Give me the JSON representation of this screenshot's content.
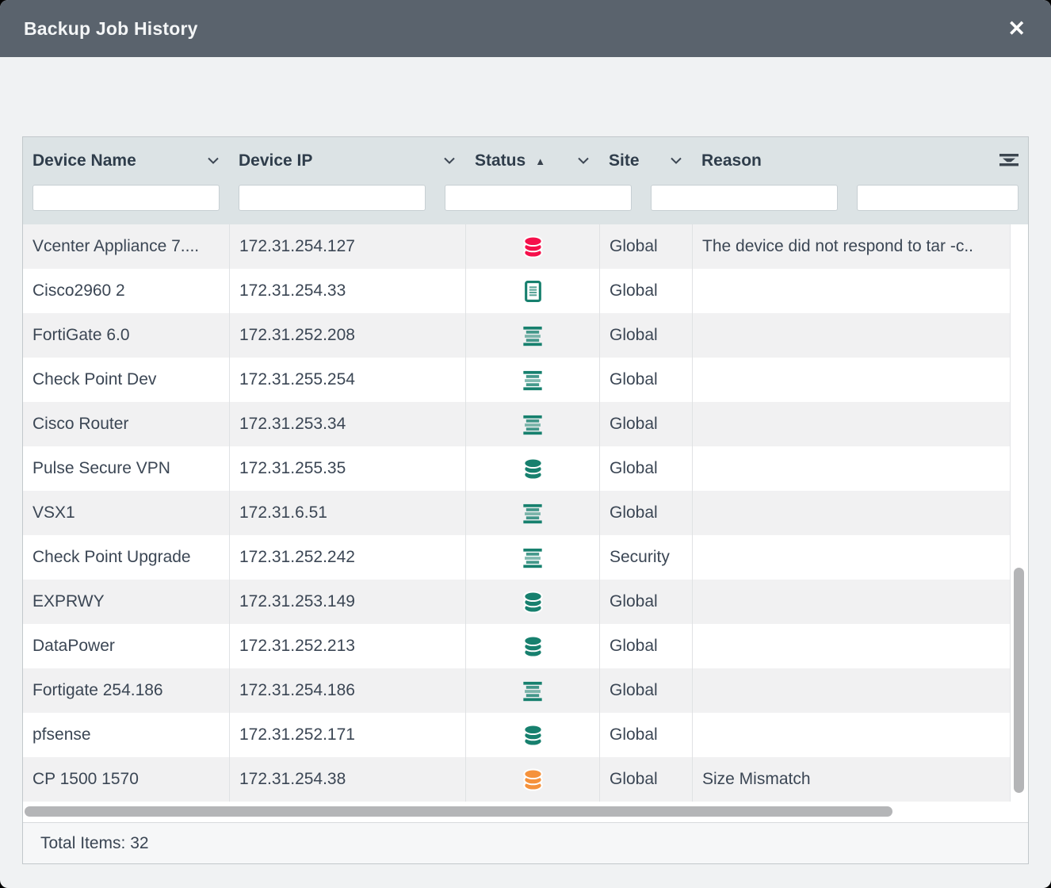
{
  "titlebar": {
    "title": "Backup Job History",
    "close_glyph": "✕"
  },
  "colors": {
    "titlebar_bg": "#5a636d",
    "table_header_bg": "#dce3e5",
    "row_alt_bg": "#f1f1f2",
    "status_failed_red": "#f5104b",
    "status_success_green": "#17806e",
    "status_warning_orange": "#f5923c"
  },
  "table": {
    "columns": [
      {
        "label": "Device Name",
        "chevron": true,
        "sort": null
      },
      {
        "label": "Device IP",
        "chevron": true,
        "sort": null
      },
      {
        "label": "Status",
        "chevron": true,
        "sort": "ascending",
        "sort_glyph": "▲"
      },
      {
        "label": "Site",
        "chevron": true,
        "sort": null
      },
      {
        "label": "Reason",
        "chevron": false,
        "sort": null
      }
    ],
    "filters": {
      "device_name_value": "",
      "device_ip_value": "",
      "status_value": "",
      "site_value": "",
      "reason_value": ""
    },
    "rows": [
      {
        "device_name": "Vcenter Appliance 7....",
        "device_ip": "172.31.254.127",
        "status_icon": "database-icon",
        "status_color": "#f5104b",
        "site": "Global",
        "reason": "The device did not respond to tar -c.."
      },
      {
        "device_name": "Cisco2960 2",
        "device_ip": "172.31.254.33",
        "status_icon": "document-icon",
        "status_color": "#17806e",
        "site": "Global",
        "reason": ""
      },
      {
        "device_name": "FortiGate 6.0",
        "device_ip": "172.31.252.208",
        "status_icon": "stacked-lines-icon",
        "status_color": "#17806e",
        "site": "Global",
        "reason": ""
      },
      {
        "device_name": "Check Point Dev",
        "device_ip": "172.31.255.254",
        "status_icon": "stacked-lines-icon",
        "status_color": "#17806e",
        "site": "Global",
        "reason": ""
      },
      {
        "device_name": "Cisco Router",
        "device_ip": "172.31.253.34",
        "status_icon": "stacked-lines-icon",
        "status_color": "#17806e",
        "site": "Global",
        "reason": ""
      },
      {
        "device_name": "Pulse Secure VPN",
        "device_ip": "172.31.255.35",
        "status_icon": "database-icon",
        "status_color": "#17806e",
        "site": "Global",
        "reason": ""
      },
      {
        "device_name": "VSX1",
        "device_ip": "172.31.6.51",
        "status_icon": "stacked-lines-icon",
        "status_color": "#17806e",
        "site": "Global",
        "reason": ""
      },
      {
        "device_name": "Check Point Upgrade",
        "device_ip": "172.31.252.242",
        "status_icon": "stacked-lines-icon",
        "status_color": "#17806e",
        "site": "Security",
        "reason": ""
      },
      {
        "device_name": "EXPRWY",
        "device_ip": "172.31.253.149",
        "status_icon": "database-icon",
        "status_color": "#17806e",
        "site": "Global",
        "reason": ""
      },
      {
        "device_name": "DataPower",
        "device_ip": "172.31.252.213",
        "status_icon": "database-icon",
        "status_color": "#17806e",
        "site": "Global",
        "reason": ""
      },
      {
        "device_name": "Fortigate 254.186",
        "device_ip": "172.31.254.186",
        "status_icon": "stacked-lines-icon",
        "status_color": "#17806e",
        "site": "Global",
        "reason": ""
      },
      {
        "device_name": "pfsense",
        "device_ip": "172.31.252.171",
        "status_icon": "database-icon",
        "status_color": "#17806e",
        "site": "Global",
        "reason": ""
      },
      {
        "device_name": "CP 1500 1570",
        "device_ip": "172.31.254.38",
        "status_icon": "database-icon",
        "status_color": "#f5923c",
        "site": "Global",
        "reason": "Size Mismatch"
      }
    ]
  },
  "footer": {
    "total_items_label": "Total Items: 32"
  }
}
